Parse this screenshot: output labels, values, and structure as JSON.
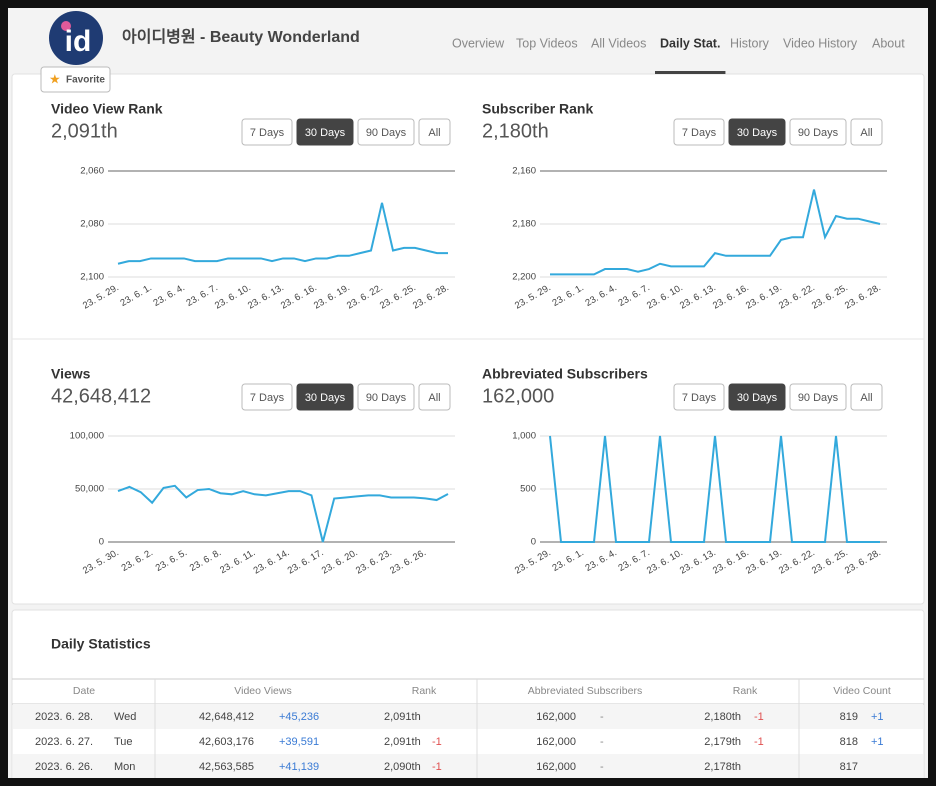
{
  "header": {
    "title": "아이디병원 - Beauty Wonderland",
    "logo": "id",
    "favorite": "Favorite",
    "nav": [
      "Overview",
      "Top Videos",
      "All Videos",
      "Daily Stat.",
      "History",
      "Video History",
      "About"
    ],
    "active_nav": 3
  },
  "range_buttons": [
    "7 Days",
    "30 Days",
    "90 Days",
    "All"
  ],
  "active_range": 1,
  "chart_data": [
    {
      "type": "line",
      "title": "Video View Rank",
      "headline": "2,091th",
      "color": "#33a9dc",
      "grid": true,
      "categories": [
        "23. 5. 29.",
        null,
        null,
        "23. 6. 1.",
        null,
        null,
        "23. 6. 4.",
        null,
        null,
        "23. 6. 7.",
        null,
        null,
        "23. 6. 10.",
        null,
        null,
        "23. 6. 13.",
        null,
        null,
        "23. 6. 16.",
        null,
        null,
        "23. 6. 19.",
        null,
        null,
        "23. 6. 22.",
        null,
        null,
        "23. 6. 25.",
        null,
        null,
        "23. 6. 28."
      ],
      "values": [
        2095,
        2094,
        2094,
        2093,
        2093,
        2093,
        2093,
        2094,
        2094,
        2094,
        2093,
        2093,
        2093,
        2093,
        2094,
        2093,
        2093,
        2094,
        2093,
        2093,
        2092,
        2092,
        2091,
        2090,
        2072,
        2090,
        2089,
        2089,
        2090,
        2091,
        2091
      ],
      "ylim": [
        2100,
        2060
      ],
      "yticks": [
        {
          "value": 2060,
          "label": "2,060"
        },
        {
          "value": 2080,
          "label": "2,080"
        },
        {
          "value": 2100,
          "label": "2,100"
        }
      ]
    },
    {
      "type": "line",
      "title": "Subscriber Rank",
      "headline": "2,180th",
      "color": "#33a9dc",
      "grid": true,
      "categories": [
        "23. 5. 29.",
        null,
        null,
        "23. 6. 1.",
        null,
        null,
        "23. 6. 4.",
        null,
        null,
        "23. 6. 7.",
        null,
        null,
        "23. 6. 10.",
        null,
        null,
        "23. 6. 13.",
        null,
        null,
        "23. 6. 16.",
        null,
        null,
        "23. 6. 19.",
        null,
        null,
        "23. 6. 22.",
        null,
        null,
        "23. 6. 25.",
        null,
        null,
        "23. 6. 28."
      ],
      "values": [
        2199,
        2199,
        2199,
        2199,
        2199,
        2197,
        2197,
        2197,
        2198,
        2197,
        2195,
        2196,
        2196,
        2196,
        2196,
        2191,
        2192,
        2192,
        2192,
        2192,
        2192,
        2186,
        2185,
        2185,
        2167,
        2185,
        2177,
        2178,
        2178,
        2179,
        2180
      ],
      "ylim": [
        2200,
        2160
      ],
      "yticks": [
        {
          "value": 2160,
          "label": "2,160"
        },
        {
          "value": 2180,
          "label": "2,180"
        },
        {
          "value": 2200,
          "label": "2,200"
        }
      ]
    },
    {
      "type": "line",
      "title": "Views",
      "headline": "42,648,412",
      "color": "#33a9dc",
      "grid": true,
      "categories": [
        "23. 5. 30.",
        null,
        null,
        "23. 6. 2.",
        null,
        null,
        "23. 6. 5.",
        null,
        null,
        "23. 6. 8.",
        null,
        null,
        "23. 6. 11.",
        null,
        null,
        "23. 6. 14.",
        null,
        null,
        "23. 6. 17.",
        null,
        null,
        "23. 6. 20.",
        null,
        null,
        "23. 6. 23.",
        null,
        null,
        "23. 6. 26.",
        null,
        null
      ],
      "values": [
        48000,
        52000,
        47000,
        37000,
        51000,
        53000,
        42000,
        49000,
        50000,
        46000,
        45000,
        48000,
        45000,
        44000,
        46000,
        48000,
        48000,
        44000,
        0,
        41000,
        42000,
        43000,
        44000,
        44000,
        42000,
        42000,
        42000,
        41139,
        39591,
        45236
      ],
      "ylim": [
        0,
        100000
      ],
      "yticks": [
        0,
        {
          "value": 50000,
          "label": "50,000"
        },
        {
          "value": 100000,
          "label": "100,000"
        }
      ]
    },
    {
      "type": "line",
      "title": "Abbreviated Subscribers",
      "headline": "162,000",
      "color": "#33a9dc",
      "grid": true,
      "categories": [
        "23. 5. 29.",
        null,
        null,
        "23. 6. 1.",
        null,
        null,
        "23. 6. 4.",
        null,
        null,
        "23. 6. 7.",
        null,
        null,
        "23. 6. 10.",
        null,
        null,
        "23. 6. 13.",
        null,
        null,
        "23. 6. 16.",
        null,
        null,
        "23. 6. 19.",
        null,
        null,
        "23. 6. 22.",
        null,
        null,
        "23. 6. 25.",
        null,
        null,
        "23. 6. 28."
      ],
      "values": [
        1000,
        0,
        0,
        0,
        0,
        1000,
        0,
        0,
        0,
        0,
        1000,
        0,
        0,
        0,
        0,
        1000,
        0,
        0,
        0,
        0,
        0,
        1000,
        0,
        0,
        0,
        0,
        1000,
        0,
        0,
        0,
        0
      ],
      "ylim": [
        0,
        1000
      ],
      "yticks": [
        0,
        500,
        {
          "value": 1000,
          "label": "1,000"
        }
      ]
    }
  ],
  "table": {
    "title": "Daily Statistics",
    "columns": [
      "Date",
      "Video Views",
      "Rank",
      "Abbreviated Subscribers",
      "Rank",
      "Video Count"
    ],
    "rows": [
      [
        "2023. 6. 28.",
        "Wed",
        "42,648,412",
        "+45,236",
        "2,091th",
        null,
        "162,000",
        "-",
        "2,180th",
        "-1",
        "819",
        "+1"
      ],
      [
        "2023. 6. 27.",
        "Tue",
        "42,603,176",
        "+39,591",
        "2,091th",
        "-1",
        "162,000",
        "-",
        "2,179th",
        "-1",
        "818",
        "+1"
      ],
      [
        "2023. 6. 26.",
        "Mon",
        "42,563,585",
        "+41,139",
        "2,090th",
        "-1",
        "162,000",
        "-",
        "2,178th",
        null,
        "817",
        null
      ]
    ]
  }
}
